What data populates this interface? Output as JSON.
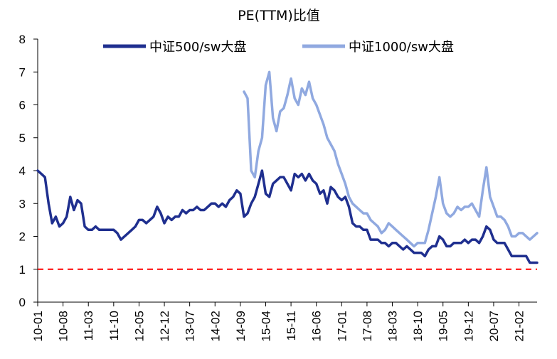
{
  "chart_data": {
    "type": "line",
    "title": "PE(TTM)比值",
    "xlabel": "",
    "ylabel": "",
    "ylim": [
      0,
      8
    ],
    "yticks": [
      "0",
      "1",
      "2",
      "3",
      "4",
      "5",
      "6",
      "7",
      "8"
    ],
    "xlim": [
      "2010-01",
      "2021-07"
    ],
    "xticks": [
      "10-01",
      "10-08",
      "11-03",
      "11-10",
      "12-05",
      "12-12",
      "13-07",
      "14-02",
      "14-09",
      "15-04",
      "15-11",
      "16-06",
      "17-01",
      "17-08",
      "18-03",
      "18-10",
      "19-05",
      "19-12",
      "20-07",
      "21-02"
    ],
    "legend_position": "top",
    "grid": false,
    "reference_line": {
      "y": 1,
      "color": "#ff0000",
      "style": "dashed"
    },
    "colors": {
      "csi500": "#1f2f8f",
      "csi1000": "#90a9e0",
      "reference": "#ff0000"
    },
    "series": [
      {
        "name": "中证500/sw大盘",
        "points": [
          [
            "2010-01",
            4.0
          ],
          [
            "2010-02",
            3.9
          ],
          [
            "2010-03",
            3.8
          ],
          [
            "2010-04",
            3.0
          ],
          [
            "2010-05",
            2.4
          ],
          [
            "2010-06",
            2.6
          ],
          [
            "2010-07",
            2.3
          ],
          [
            "2010-08",
            2.4
          ],
          [
            "2010-09",
            2.6
          ],
          [
            "2010-10",
            3.2
          ],
          [
            "2010-11",
            2.8
          ],
          [
            "2010-12",
            3.1
          ],
          [
            "2011-01",
            3.0
          ],
          [
            "2011-02",
            2.3
          ],
          [
            "2011-03",
            2.2
          ],
          [
            "2011-04",
            2.2
          ],
          [
            "2011-05",
            2.3
          ],
          [
            "2011-06",
            2.2
          ],
          [
            "2011-07",
            2.2
          ],
          [
            "2011-08",
            2.2
          ],
          [
            "2011-09",
            2.2
          ],
          [
            "2011-10",
            2.2
          ],
          [
            "2011-11",
            2.1
          ],
          [
            "2011-12",
            1.9
          ],
          [
            "2012-01",
            2.0
          ],
          [
            "2012-02",
            2.1
          ],
          [
            "2012-03",
            2.2
          ],
          [
            "2012-04",
            2.3
          ],
          [
            "2012-05",
            2.5
          ],
          [
            "2012-06",
            2.5
          ],
          [
            "2012-07",
            2.4
          ],
          [
            "2012-08",
            2.5
          ],
          [
            "2012-09",
            2.6
          ],
          [
            "2012-10",
            2.9
          ],
          [
            "2012-11",
            2.7
          ],
          [
            "2012-12",
            2.4
          ],
          [
            "2013-01",
            2.6
          ],
          [
            "2013-02",
            2.5
          ],
          [
            "2013-03",
            2.6
          ],
          [
            "2013-04",
            2.6
          ],
          [
            "2013-05",
            2.8
          ],
          [
            "2013-06",
            2.7
          ],
          [
            "2013-07",
            2.8
          ],
          [
            "2013-08",
            2.8
          ],
          [
            "2013-09",
            2.9
          ],
          [
            "2013-10",
            2.8
          ],
          [
            "2013-11",
            2.8
          ],
          [
            "2013-12",
            2.9
          ],
          [
            "2014-01",
            3.0
          ],
          [
            "2014-02",
            3.0
          ],
          [
            "2014-03",
            2.9
          ],
          [
            "2014-04",
            3.0
          ],
          [
            "2014-05",
            2.9
          ],
          [
            "2014-06",
            3.1
          ],
          [
            "2014-07",
            3.2
          ],
          [
            "2014-08",
            3.4
          ],
          [
            "2014-09",
            3.3
          ],
          [
            "2014-10",
            2.6
          ],
          [
            "2014-11",
            2.7
          ],
          [
            "2014-12",
            3.0
          ],
          [
            "2015-01",
            3.2
          ],
          [
            "2015-02",
            3.6
          ],
          [
            "2015-03",
            4.0
          ],
          [
            "2015-04",
            3.3
          ],
          [
            "2015-05",
            3.2
          ],
          [
            "2015-06",
            3.6
          ],
          [
            "2015-07",
            3.7
          ],
          [
            "2015-08",
            3.8
          ],
          [
            "2015-09",
            3.8
          ],
          [
            "2015-10",
            3.6
          ],
          [
            "2015-11",
            3.4
          ],
          [
            "2015-12",
            3.9
          ],
          [
            "2016-01",
            3.8
          ],
          [
            "2016-02",
            3.9
          ],
          [
            "2016-03",
            3.7
          ],
          [
            "2016-04",
            3.9
          ],
          [
            "2016-05",
            3.7
          ],
          [
            "2016-06",
            3.6
          ],
          [
            "2016-07",
            3.3
          ],
          [
            "2016-08",
            3.4
          ],
          [
            "2016-09",
            3.0
          ],
          [
            "2016-10",
            3.5
          ],
          [
            "2016-11",
            3.4
          ],
          [
            "2016-12",
            3.2
          ],
          [
            "2017-01",
            3.1
          ],
          [
            "2017-02",
            3.2
          ],
          [
            "2017-03",
            2.9
          ],
          [
            "2017-04",
            2.4
          ],
          [
            "2017-05",
            2.3
          ],
          [
            "2017-06",
            2.3
          ],
          [
            "2017-07",
            2.2
          ],
          [
            "2017-08",
            2.2
          ],
          [
            "2017-09",
            1.9
          ],
          [
            "2017-10",
            1.9
          ],
          [
            "2017-11",
            1.9
          ],
          [
            "2017-12",
            1.8
          ],
          [
            "2018-01",
            1.8
          ],
          [
            "2018-02",
            1.7
          ],
          [
            "2018-03",
            1.8
          ],
          [
            "2018-04",
            1.8
          ],
          [
            "2018-05",
            1.7
          ],
          [
            "2018-06",
            1.6
          ],
          [
            "2018-07",
            1.7
          ],
          [
            "2018-08",
            1.6
          ],
          [
            "2018-09",
            1.5
          ],
          [
            "2018-10",
            1.5
          ],
          [
            "2018-11",
            1.5
          ],
          [
            "2018-12",
            1.4
          ],
          [
            "2019-01",
            1.6
          ],
          [
            "2019-02",
            1.7
          ],
          [
            "2019-03",
            1.7
          ],
          [
            "2019-04",
            2.0
          ],
          [
            "2019-05",
            1.9
          ],
          [
            "2019-06",
            1.7
          ],
          [
            "2019-07",
            1.7
          ],
          [
            "2019-08",
            1.8
          ],
          [
            "2019-09",
            1.8
          ],
          [
            "2019-10",
            1.8
          ],
          [
            "2019-11",
            1.9
          ],
          [
            "2019-12",
            1.8
          ],
          [
            "2020-01",
            1.9
          ],
          [
            "2020-02",
            1.9
          ],
          [
            "2020-03",
            1.8
          ],
          [
            "2020-04",
            2.0
          ],
          [
            "2020-05",
            2.3
          ],
          [
            "2020-06",
            2.2
          ],
          [
            "2020-07",
            1.9
          ],
          [
            "2020-08",
            1.8
          ],
          [
            "2020-09",
            1.8
          ],
          [
            "2020-10",
            1.8
          ],
          [
            "2020-11",
            1.6
          ],
          [
            "2020-12",
            1.4
          ],
          [
            "2021-01",
            1.4
          ],
          [
            "2021-02",
            1.4
          ],
          [
            "2021-03",
            1.4
          ],
          [
            "2021-04",
            1.4
          ],
          [
            "2021-05",
            1.2
          ],
          [
            "2021-06",
            1.2
          ],
          [
            "2021-07",
            1.2
          ]
        ]
      },
      {
        "name": "中证1000/sw大盘",
        "points": [
          [
            "2014-10",
            6.4
          ],
          [
            "2014-11",
            6.2
          ],
          [
            "2014-12",
            4.0
          ],
          [
            "2015-01",
            3.8
          ],
          [
            "2015-02",
            4.6
          ],
          [
            "2015-03",
            5.0
          ],
          [
            "2015-04",
            6.6
          ],
          [
            "2015-05",
            7.0
          ],
          [
            "2015-06",
            5.6
          ],
          [
            "2015-07",
            5.2
          ],
          [
            "2015-08",
            5.8
          ],
          [
            "2015-09",
            5.9
          ],
          [
            "2015-10",
            6.3
          ],
          [
            "2015-11",
            6.8
          ],
          [
            "2015-12",
            6.2
          ],
          [
            "2016-01",
            6.0
          ],
          [
            "2016-02",
            6.5
          ],
          [
            "2016-03",
            6.3
          ],
          [
            "2016-04",
            6.7
          ],
          [
            "2016-05",
            6.2
          ],
          [
            "2016-06",
            6.0
          ],
          [
            "2016-07",
            5.7
          ],
          [
            "2016-08",
            5.4
          ],
          [
            "2016-09",
            5.0
          ],
          [
            "2016-10",
            4.8
          ],
          [
            "2016-11",
            4.6
          ],
          [
            "2016-12",
            4.2
          ],
          [
            "2017-01",
            3.9
          ],
          [
            "2017-02",
            3.6
          ],
          [
            "2017-03",
            3.2
          ],
          [
            "2017-04",
            3.0
          ],
          [
            "2017-05",
            2.9
          ],
          [
            "2017-06",
            2.8
          ],
          [
            "2017-07",
            2.7
          ],
          [
            "2017-08",
            2.7
          ],
          [
            "2017-09",
            2.5
          ],
          [
            "2017-10",
            2.4
          ],
          [
            "2017-11",
            2.3
          ],
          [
            "2017-12",
            2.1
          ],
          [
            "2018-01",
            2.2
          ],
          [
            "2018-02",
            2.4
          ],
          [
            "2018-03",
            2.3
          ],
          [
            "2018-04",
            2.2
          ],
          [
            "2018-05",
            2.1
          ],
          [
            "2018-06",
            2.0
          ],
          [
            "2018-07",
            1.9
          ],
          [
            "2018-08",
            1.8
          ],
          [
            "2018-09",
            1.7
          ],
          [
            "2018-10",
            1.8
          ],
          [
            "2018-11",
            1.8
          ],
          [
            "2018-12",
            1.8
          ],
          [
            "2019-01",
            2.2
          ],
          [
            "2019-02",
            2.7
          ],
          [
            "2019-03",
            3.2
          ],
          [
            "2019-04",
            3.8
          ],
          [
            "2019-05",
            3.0
          ],
          [
            "2019-06",
            2.7
          ],
          [
            "2019-07",
            2.6
          ],
          [
            "2019-08",
            2.7
          ],
          [
            "2019-09",
            2.9
          ],
          [
            "2019-10",
            2.8
          ],
          [
            "2019-11",
            2.9
          ],
          [
            "2019-12",
            2.9
          ],
          [
            "2020-01",
            3.0
          ],
          [
            "2020-02",
            2.8
          ],
          [
            "2020-03",
            2.6
          ],
          [
            "2020-04",
            3.4
          ],
          [
            "2020-05",
            4.1
          ],
          [
            "2020-06",
            3.2
          ],
          [
            "2020-07",
            2.9
          ],
          [
            "2020-08",
            2.6
          ],
          [
            "2020-09",
            2.6
          ],
          [
            "2020-10",
            2.5
          ],
          [
            "2020-11",
            2.3
          ],
          [
            "2020-12",
            2.0
          ],
          [
            "2021-01",
            2.0
          ],
          [
            "2021-02",
            2.1
          ],
          [
            "2021-03",
            2.1
          ],
          [
            "2021-04",
            2.0
          ],
          [
            "2021-05",
            1.9
          ],
          [
            "2021-06",
            2.0
          ],
          [
            "2021-07",
            2.1
          ]
        ]
      }
    ]
  }
}
